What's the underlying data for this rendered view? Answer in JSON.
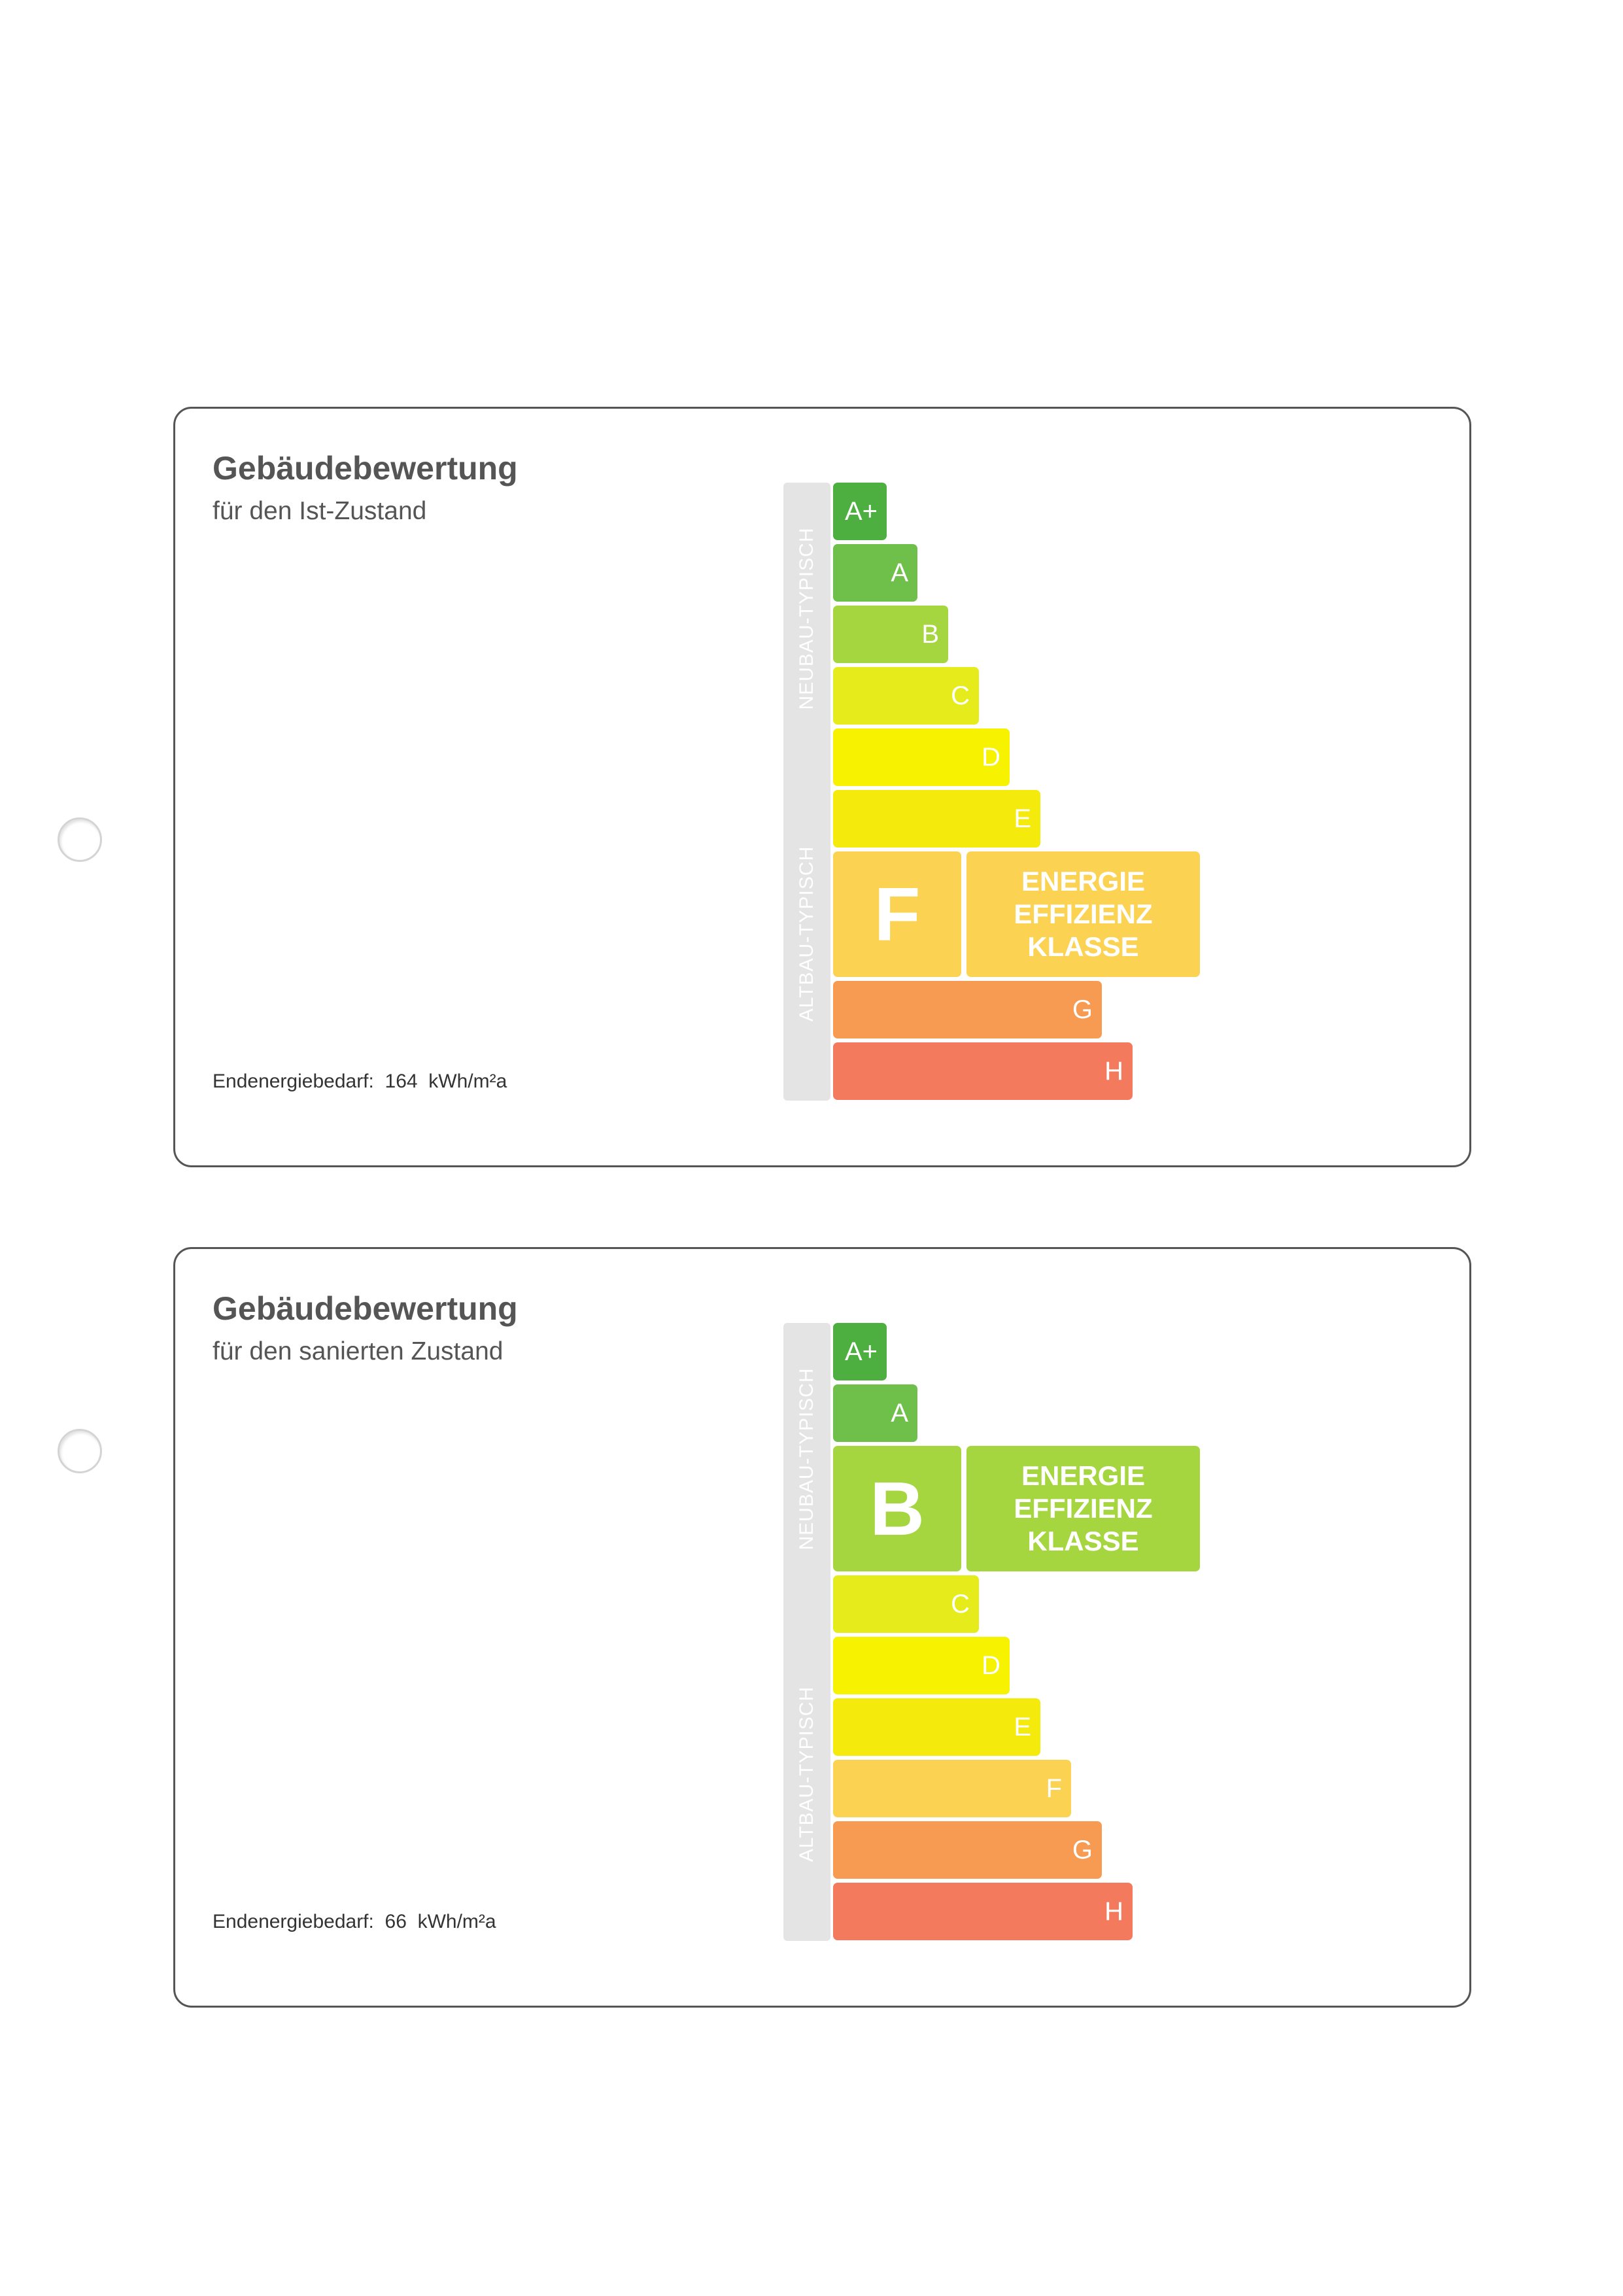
{
  "colors": {
    "A+": "#4caf3f",
    "A": "#6ec04a",
    "B": "#a6d63f",
    "C": "#e6ec1c",
    "D": "#f6f200",
    "E": "#f4ea0c",
    "F": "#fbd252",
    "G": "#f79a52",
    "H": "#f47a5e"
  },
  "scale_labels": {
    "neubau": "NEUBAU-TYPISCH",
    "altbau": "ALTBAU-TYPISCH"
  },
  "cards": [
    {
      "title": "Gebäudebewertung",
      "subtitle": "für den Ist-Zustand",
      "demand_label": "Endenergiebedarf:",
      "demand_value": "164",
      "demand_unit": "kWh/m²a",
      "current_class": "F",
      "class_box_lines": [
        "ENERGIE",
        "EFFIZIENZ",
        "KLASSE"
      ],
      "classes": [
        "A+",
        "A",
        "B",
        "C",
        "D",
        "E",
        "F",
        "G",
        "H"
      ]
    },
    {
      "title": "Gebäudebewertung",
      "subtitle": "für den sanierten Zustand",
      "demand_label": "Endenergiebedarf:",
      "demand_value": "66",
      "demand_unit": "kWh/m²a",
      "current_class": "B",
      "class_box_lines": [
        "ENERGIE",
        "EFFIZIENZ",
        "KLASSE"
      ],
      "classes": [
        "A+",
        "A",
        "B",
        "C",
        "D",
        "E",
        "F",
        "G",
        "H"
      ]
    }
  ]
}
